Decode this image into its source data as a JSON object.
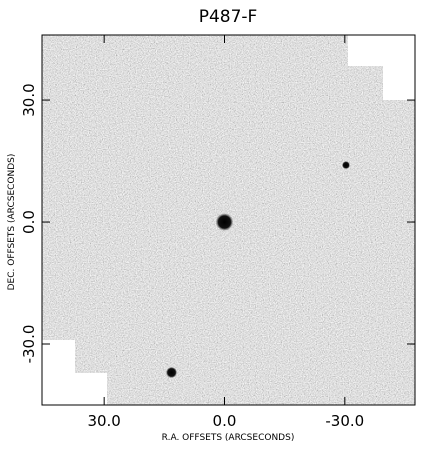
{
  "chart_data": {
    "type": "image",
    "title": "P487-F",
    "x_label": "R.A. OFFSETS (ARCSECONDS)",
    "y_label": "DEC. OFFSETS (ARCSECONDS)",
    "xlim": [
      45.5,
      -47.5
    ],
    "ylim": [
      -45,
      46
    ],
    "xticks": [
      {
        "value": 30,
        "label": "30.0"
      },
      {
        "value": 0,
        "label": "0.0"
      },
      {
        "value": -30,
        "label": "-30.0"
      }
    ],
    "yticks": [
      {
        "value": -30,
        "label": "-30.0"
      },
      {
        "value": 0,
        "label": "0.0"
      },
      {
        "value": 30,
        "label": "30.0"
      }
    ],
    "sources": {
      "x": [
        0,
        -30.3,
        13.2
      ],
      "y": [
        0,
        14,
        -37
      ],
      "size": [
        2.2,
        1.0,
        1.4
      ]
    }
  }
}
